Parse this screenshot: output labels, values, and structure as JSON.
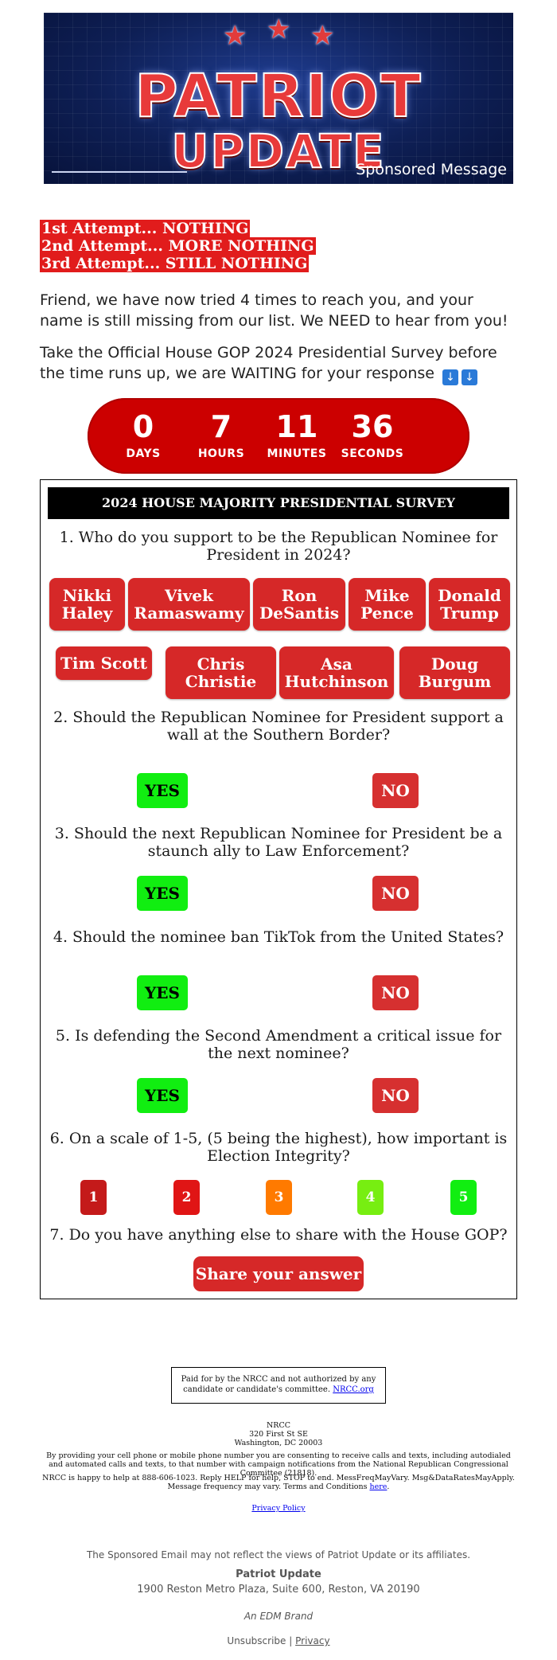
{
  "banner": {
    "title_line1": "PATRIOT",
    "title_line2": "UPDATE",
    "sponsored_label": "Sponsored Message"
  },
  "attempts": [
    "1st Attempt... NOTHING",
    "2nd Attempt... MORE NOTHING",
    "3rd Attempt... STILL NOTHING"
  ],
  "intro_paragraph": "Friend, we have now tried 4 times to reach you, and your name is still missing from our list. We NEED to hear from you!",
  "cta_paragraph": "Take the Official House GOP 2024 Presidential Survey before the time runs up, we are WAITING for your response",
  "countdown": {
    "days": "0",
    "days_label": "DAYS",
    "hours": "7",
    "hours_label": "HOURS",
    "minutes": "11",
    "minutes_label": "MINUTES",
    "seconds": "36",
    "seconds_label": "SECONDS"
  },
  "survey": {
    "title": "2024 HOUSE MAJORITY PRESIDENTIAL SURVEY",
    "q1": "1. Who do you support to be the Republican Nominee for President in 2024?",
    "candidates_row1": [
      {
        "line1": "Nikki",
        "line2": "Haley"
      },
      {
        "line1": "Vivek",
        "line2": "Ramaswamy"
      },
      {
        "line1": "Ron",
        "line2": "DeSantis"
      },
      {
        "line1": "Mike",
        "line2": "Pence"
      },
      {
        "line1": "Donald",
        "line2": "Trump"
      }
    ],
    "candidates_row2": [
      {
        "line1": "Tim Scott",
        "line2": ""
      },
      {
        "line1": "Chris",
        "line2": "Christie"
      },
      {
        "line1": "Asa",
        "line2": "Hutchinson"
      },
      {
        "line1": "Doug",
        "line2": "Burgum"
      }
    ],
    "q2": "2. Should the Republican Nominee for President support a wall at the Southern Border?",
    "q3": "3. Should the next Republican Nominee for President be a staunch ally to Law Enforcement?",
    "q4": "4. Should the nominee ban TikTok from the United States?",
    "q5": "5. Is defending the Second Amendment a critical issue for the next nominee?",
    "q6": "6. On a scale of 1-5, (5 being the highest), how important is Election Integrity?",
    "q7": "7. Do you have anything else to share with the House GOP?",
    "yes_label": "YES",
    "no_label": "NO",
    "ratings": [
      "1",
      "2",
      "3",
      "4",
      "5"
    ],
    "rating_colors": [
      "#c41a1a",
      "#e01515",
      "#ff7a00",
      "#77ee11",
      "#11ee11"
    ],
    "share_label": "Share your answer"
  },
  "footer": {
    "paid_for_text": "Paid for by the NRCC and not authorized by any candidate or candidate's committee.",
    "paid_for_link": "NRCC.org",
    "org_name": "NRCC",
    "address_line1": "320 First St SE",
    "address_line2": "Washington, DC 20003",
    "consent_text": "By providing your cell phone or mobile phone number you are consenting to receive calls and texts, including autodialed and automated calls and texts, to that number with campaign notifications from the National Republican Congressional Committee (21818).",
    "help_text": "NRCC is happy to help at 888-606-1023. Reply HELP for help, STOP to end. MessFreqMayVary. Msg&DataRatesMayApply. Message frequency may vary. Terms and Conditions",
    "help_link": "here",
    "privacy_policy": "Privacy Policy",
    "disclaimer": "The Sponsored Email may not reflect the views of Patriot Update or its affiliates.",
    "brand_name": "Patriot Update",
    "brand_address": "1900 Reston Metro Plaza, Suite 600, Reston, VA 20190",
    "edm_brand": "An EDM Brand",
    "unsubscribe": "Unsubscribe",
    "separator": "|",
    "privacy": "Privacy"
  }
}
